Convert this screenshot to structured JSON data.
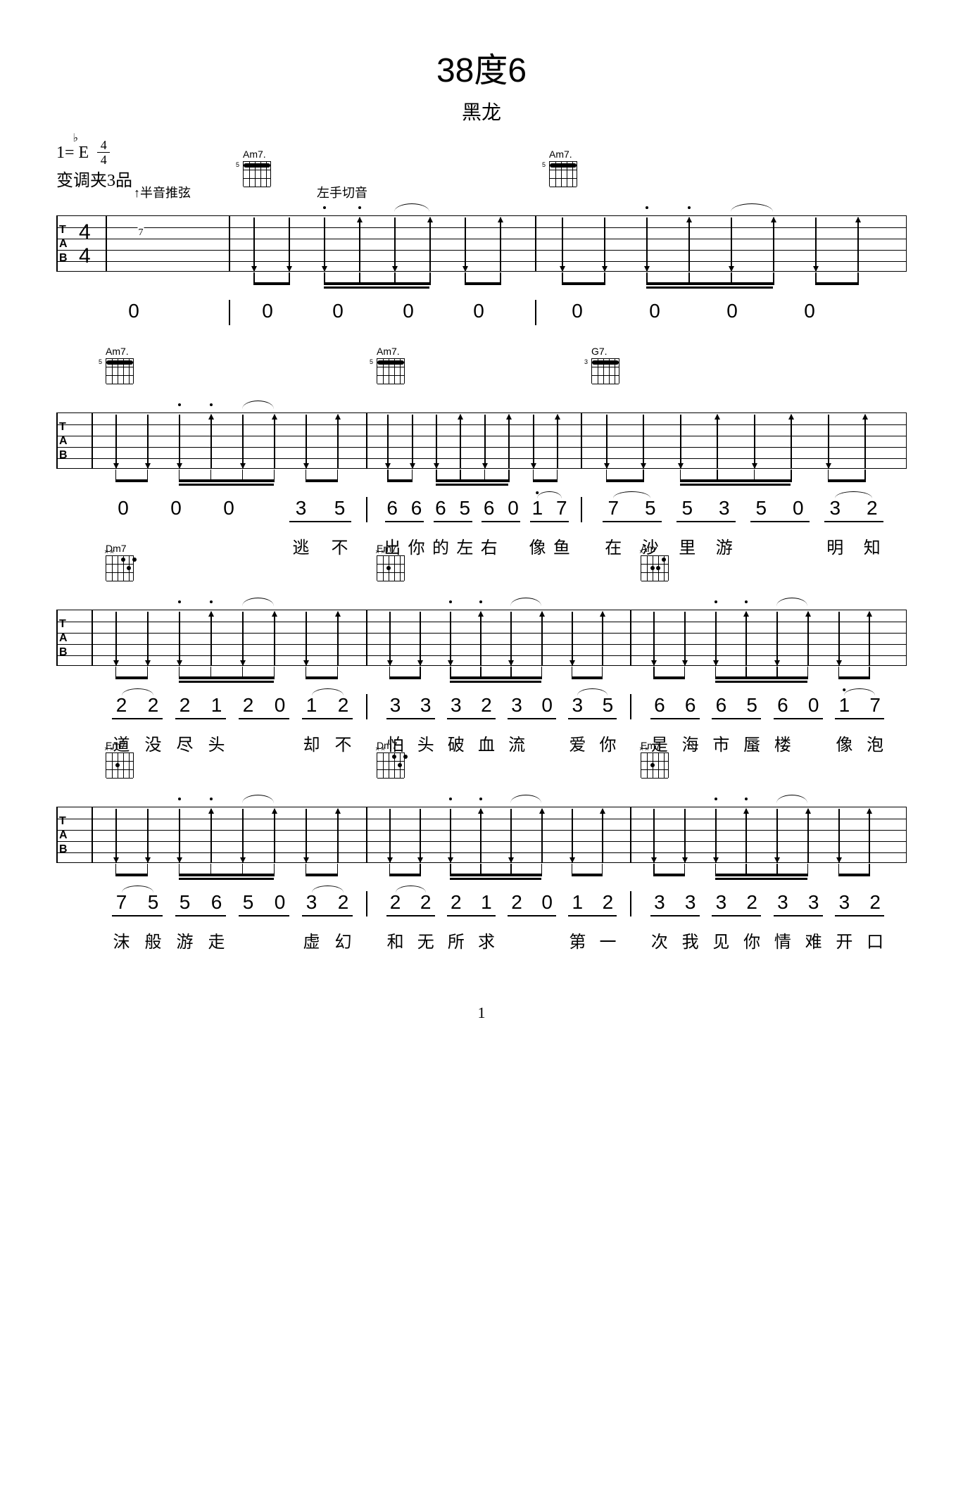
{
  "title": "38度6",
  "artist": "黑龙",
  "key_prefix": "1=",
  "key_letter": "E",
  "ts_num": "4",
  "ts_den": "4",
  "capo_text": "变调夹3品",
  "ann_bend": "↑半音推弦",
  "ann_mute": "左手切音",
  "page_num": "1",
  "chords": {
    "am7": "Am7.",
    "g7": "G7.",
    "dm7": "Dm7",
    "em7": "Em7",
    "am": "Am"
  },
  "systems": [
    {
      "jianpu_numbers": [
        "0",
        "0",
        "0",
        "0",
        "0",
        "0",
        "0",
        "0",
        "0"
      ],
      "lyrics": []
    },
    {
      "jianpu_pre": [
        "0",
        "0",
        "0"
      ],
      "jp_tail": [
        "3",
        "5"
      ],
      "bar2": [
        "6",
        "6",
        "6",
        "5",
        "6",
        "0",
        "1",
        "7"
      ],
      "bar3": [
        "7",
        "5",
        "5",
        "3",
        "5",
        "0",
        "3",
        "2"
      ],
      "lyr_tail": [
        "逃",
        "不"
      ],
      "lyr2": [
        "出",
        "你",
        "的",
        "左",
        "右",
        "",
        "像",
        "鱼"
      ],
      "lyr3": [
        "在",
        "沙",
        "里",
        "游",
        "",
        "",
        "明",
        "知"
      ]
    },
    {
      "bar1": [
        "2",
        "2",
        "2",
        "1",
        "2",
        "0",
        "1",
        "2"
      ],
      "bar2": [
        "3",
        "3",
        "3",
        "2",
        "3",
        "0",
        "3",
        "5"
      ],
      "bar3": [
        "6",
        "6",
        "6",
        "5",
        "6",
        "0",
        "1",
        "7"
      ],
      "lyr1": [
        "道",
        "没",
        "尽",
        "头",
        "",
        "",
        "却",
        "不"
      ],
      "lyr2": [
        "怕",
        "头",
        "破",
        "血",
        "流",
        "",
        "爱",
        "你"
      ],
      "lyr3": [
        "是",
        "海",
        "市",
        "蜃",
        "楼",
        "",
        "像",
        "泡"
      ]
    },
    {
      "bar1": [
        "7",
        "5",
        "5",
        "6",
        "5",
        "0",
        "3",
        "2"
      ],
      "bar2": [
        "2",
        "2",
        "2",
        "1",
        "2",
        "0",
        "1",
        "2"
      ],
      "bar3": [
        "3",
        "3",
        "3",
        "2",
        "3",
        "3",
        "3",
        "2"
      ],
      "lyr1": [
        "沫",
        "般",
        "游",
        "走",
        "",
        "",
        "虚",
        "幻"
      ],
      "lyr2": [
        "和",
        "无",
        "所",
        "求",
        "",
        "",
        "第",
        "一"
      ],
      "lyr3": [
        "次",
        "我",
        "见",
        "你",
        "情",
        "难",
        "开",
        "口"
      ]
    }
  ]
}
